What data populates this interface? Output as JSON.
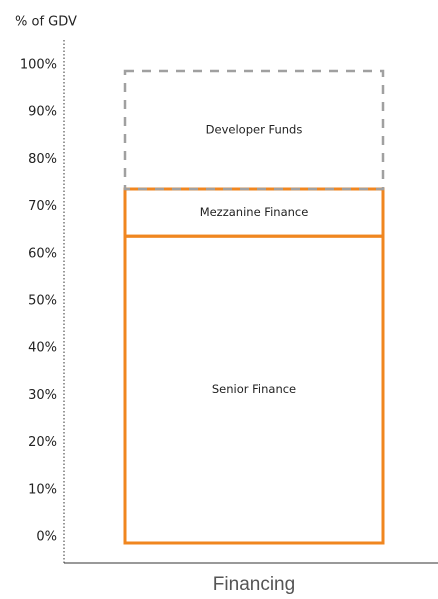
{
  "chart_data": {
    "type": "stacked_bar",
    "ylabel": "% of GDV",
    "categories": [
      "Financing"
    ],
    "series": [
      {
        "name": "Senior Finance",
        "color": "#f0861f",
        "dashed": false,
        "values": [
          65
        ]
      },
      {
        "name": "Mezzanine Finance",
        "color": "#f0861f",
        "dashed": false,
        "values": [
          10
        ]
      },
      {
        "name": "Developer Funds",
        "color": "#a0a0a0",
        "dashed": true,
        "values": [
          25
        ]
      }
    ],
    "ylim": [
      0,
      100
    ],
    "yticks": [
      {
        "value": 0,
        "label": "0%"
      },
      {
        "value": 10,
        "label": "10%"
      },
      {
        "value": 20,
        "label": "20%"
      },
      {
        "value": 30,
        "label": "30%"
      },
      {
        "value": 40,
        "label": "40%"
      },
      {
        "value": 50,
        "label": "50%"
      },
      {
        "value": 60,
        "label": "60%"
      },
      {
        "value": 70,
        "label": "70%"
      },
      {
        "value": 80,
        "label": "80%"
      },
      {
        "value": 90,
        "label": "90%"
      },
      {
        "value": 100,
        "label": "100%"
      }
    ]
  }
}
